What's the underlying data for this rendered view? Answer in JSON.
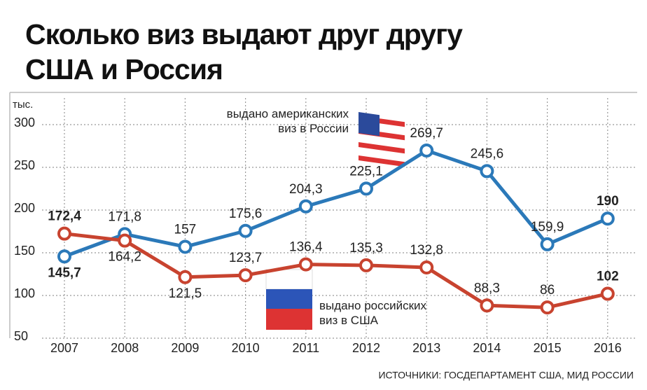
{
  "chart_data": {
    "type": "line",
    "title": "Сколько виз выдают друг другу США и Россия",
    "y_label": "тыс.",
    "categories": [
      "2007",
      "2008",
      "2009",
      "2010",
      "2011",
      "2012",
      "2013",
      "2014",
      "2015",
      "2016"
    ],
    "series": [
      {
        "name": "выдано американских виз в России",
        "color": "#2b79b9",
        "values": [
          145.7,
          171.8,
          157,
          175.6,
          204.3,
          225.1,
          269.7,
          245.6,
          159.9,
          190
        ],
        "value_labels": [
          "145,7",
          "171,8",
          "157",
          "175,6",
          "204,3",
          "225,1",
          "269,7",
          "245,6",
          "159,9",
          "190"
        ]
      },
      {
        "name": "выдано российских виз в США",
        "color": "#c8432f",
        "values": [
          172.4,
          164.2,
          121.5,
          123.7,
          136.4,
          135.3,
          132.8,
          88.3,
          86,
          102
        ],
        "value_labels": [
          "172,4",
          "164,2",
          "121,5",
          "123,7",
          "136,4",
          "135,3",
          "132,8",
          "88,3",
          "86",
          "102"
        ]
      }
    ],
    "ylim": [
      50,
      325
    ],
    "yticks": [
      50,
      100,
      150,
      200,
      250,
      300
    ],
    "grid": true,
    "source": "ИСТОЧНИКИ: ГОСДЕПАРТАМЕНТ США, МИД РОССИИ"
  }
}
